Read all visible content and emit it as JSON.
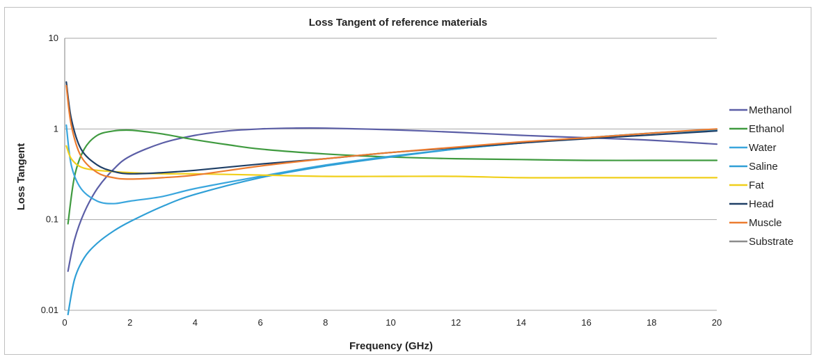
{
  "chart_data": {
    "type": "line",
    "title": "Loss Tangent of reference materials",
    "xlabel": "Frequency (GHz)",
    "ylabel": "Loss Tangent",
    "xlim": [
      0,
      20
    ],
    "ylim": [
      0.01,
      10
    ],
    "yscale": "log",
    "x_ticks": [
      "0",
      "2",
      "4",
      "6",
      "8",
      "10",
      "12",
      "14",
      "16",
      "18",
      "20"
    ],
    "y_ticks": [
      "0.01",
      "0.1",
      "1",
      "10"
    ],
    "grid": "horizontal",
    "legend_position": "right",
    "series": [
      {
        "name": "Methanol",
        "color": "#5b5ea6",
        "x": [
          0.1,
          0.3,
          0.6,
          1,
          1.5,
          2,
          3,
          4,
          5,
          6,
          7,
          8,
          10,
          12,
          14,
          16,
          18,
          20
        ],
        "y": [
          0.027,
          0.06,
          0.12,
          0.22,
          0.36,
          0.5,
          0.7,
          0.85,
          0.95,
          1.0,
          1.02,
          1.02,
          0.98,
          0.92,
          0.85,
          0.8,
          0.75,
          0.68
        ]
      },
      {
        "name": "Ethanol",
        "color": "#3f9a3f",
        "x": [
          0.1,
          0.3,
          0.6,
          1,
          1.5,
          2,
          2.5,
          3,
          4,
          5,
          6,
          8,
          10,
          12,
          14,
          16,
          18,
          20
        ],
        "y": [
          0.09,
          0.3,
          0.6,
          0.85,
          0.95,
          0.97,
          0.93,
          0.88,
          0.76,
          0.67,
          0.6,
          0.53,
          0.49,
          0.47,
          0.46,
          0.45,
          0.45,
          0.45
        ]
      },
      {
        "name": "Water",
        "color": "#3aa6dd",
        "x": [
          0.05,
          0.2,
          0.5,
          1,
          1.5,
          2,
          3,
          4,
          6,
          8,
          10,
          12,
          14,
          16,
          18,
          20
        ],
        "y": [
          1.1,
          0.4,
          0.22,
          0.16,
          0.15,
          0.16,
          0.18,
          0.22,
          0.3,
          0.4,
          0.5,
          0.6,
          0.7,
          0.8,
          0.9,
          0.98
        ]
      },
      {
        "name": "Saline",
        "color": "#2f9fd6",
        "x": [
          0.1,
          0.3,
          0.6,
          1,
          1.5,
          2,
          3,
          4,
          6,
          8,
          10,
          12,
          14,
          16,
          18,
          20
        ],
        "y": [
          0.009,
          0.022,
          0.038,
          0.055,
          0.075,
          0.095,
          0.14,
          0.19,
          0.29,
          0.39,
          0.49,
          0.6,
          0.7,
          0.8,
          0.9,
          0.98
        ]
      },
      {
        "name": "Fat",
        "color": "#f0cf1a",
        "x": [
          0.05,
          0.2,
          0.5,
          1,
          2,
          3,
          4,
          6,
          8,
          10,
          12,
          14,
          16,
          18,
          20
        ],
        "y": [
          0.65,
          0.47,
          0.38,
          0.35,
          0.33,
          0.32,
          0.32,
          0.31,
          0.3,
          0.3,
          0.3,
          0.29,
          0.29,
          0.29,
          0.29
        ]
      },
      {
        "name": "Head",
        "color": "#1f3f66",
        "x": [
          0.05,
          0.2,
          0.5,
          1,
          1.5,
          2,
          3,
          4,
          6,
          8,
          10,
          12,
          14,
          16,
          18,
          20
        ],
        "y": [
          3.3,
          1.3,
          0.6,
          0.4,
          0.34,
          0.32,
          0.33,
          0.35,
          0.41,
          0.47,
          0.55,
          0.62,
          0.7,
          0.78,
          0.86,
          0.95
        ]
      },
      {
        "name": "Muscle",
        "color": "#ec7c30",
        "x": [
          0.05,
          0.2,
          0.5,
          1,
          1.5,
          2,
          3,
          4,
          6,
          8,
          10,
          12,
          14,
          16,
          18,
          20
        ],
        "y": [
          3.0,
          1.1,
          0.5,
          0.33,
          0.29,
          0.28,
          0.29,
          0.31,
          0.39,
          0.47,
          0.55,
          0.63,
          0.72,
          0.8,
          0.9,
          1.0
        ]
      },
      {
        "name": "Substrate",
        "color": "#8c8c8c",
        "x": [],
        "y": []
      }
    ]
  }
}
